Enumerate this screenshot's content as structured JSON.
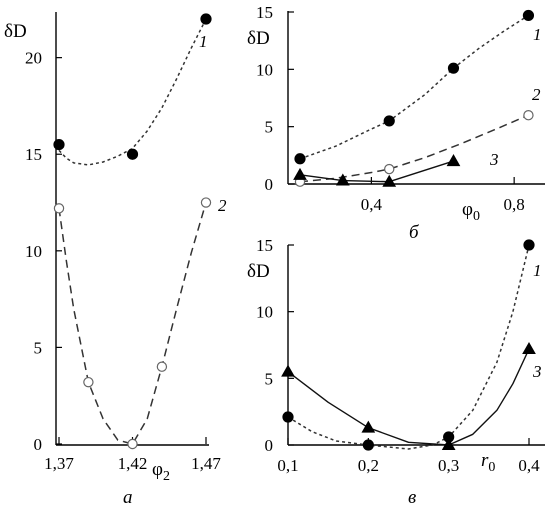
{
  "chart_data": [
    {
      "type": "line",
      "panel_label": "а",
      "ylabel": "δD",
      "xlabel": "φ",
      "xlabel_sub": "2",
      "xlim": [
        1.37,
        1.47
      ],
      "ylim": [
        0,
        22
      ],
      "x_ticks": [
        1.37,
        1.42,
        1.47
      ],
      "x_tick_labels": [
        "1,37",
        "1,42",
        "1,47"
      ],
      "y_ticks": [
        0,
        5,
        10,
        15,
        20
      ],
      "y_tick_labels": [
        "0",
        "5",
        "10",
        "15",
        "20"
      ],
      "series": [
        {
          "name": "1",
          "marker": "filled-circle",
          "line": "dotted",
          "points": [
            [
              1.37,
              15.5
            ],
            [
              1.42,
              15.0
            ],
            [
              1.47,
              22.0
            ]
          ],
          "curve": [
            [
              1.37,
              15.2
            ],
            [
              1.375,
              14.8
            ],
            [
              1.38,
              14.55
            ],
            [
              1.39,
              14.45
            ],
            [
              1.4,
              14.6
            ],
            [
              1.41,
              14.9
            ],
            [
              1.42,
              15.3
            ],
            [
              1.43,
              16.2
            ],
            [
              1.44,
              17.4
            ],
            [
              1.45,
              18.9
            ],
            [
              1.46,
              20.5
            ],
            [
              1.47,
              22.0
            ]
          ]
        },
        {
          "name": "2",
          "marker": "open-circle",
          "line": "dashed",
          "points": [
            [
              1.37,
              12.2
            ],
            [
              1.39,
              3.2
            ],
            [
              1.42,
              0.0
            ],
            [
              1.44,
              4.0
            ],
            [
              1.47,
              12.5
            ]
          ],
          "curve": [
            [
              1.37,
              12.2
            ],
            [
              1.375,
              9.5
            ],
            [
              1.38,
              7.0
            ],
            [
              1.39,
              3.2
            ],
            [
              1.4,
              1.3
            ],
            [
              1.41,
              0.2
            ],
            [
              1.42,
              0.0
            ],
            [
              1.43,
              1.3
            ],
            [
              1.44,
              4.0
            ],
            [
              1.45,
              7.0
            ],
            [
              1.46,
              9.9
            ],
            [
              1.47,
              12.5
            ]
          ]
        }
      ]
    },
    {
      "type": "line",
      "panel_label": "б",
      "ylabel": "δD",
      "xlabel": "φ",
      "xlabel_sub": "0",
      "xlim": [
        0.2,
        0.85
      ],
      "ylim": [
        0,
        15
      ],
      "x_ticks": [
        0.4,
        0.8
      ],
      "x_tick_labels": [
        "0,4",
        "0,8"
      ],
      "y_ticks": [
        0,
        5,
        10,
        15
      ],
      "y_tick_labels": [
        "0",
        "5",
        "10",
        "15"
      ],
      "series": [
        {
          "name": "1",
          "marker": "filled-circle",
          "line": "dotted",
          "points": [
            [
              0.2,
              2.2
            ],
            [
              0.45,
              5.5
            ],
            [
              0.63,
              10.1
            ],
            [
              0.84,
              14.7
            ]
          ],
          "curve": [
            [
              0.2,
              2.2
            ],
            [
              0.3,
              3.3
            ],
            [
              0.4,
              4.8
            ],
            [
              0.45,
              5.5
            ],
            [
              0.55,
              7.8
            ],
            [
              0.63,
              10.1
            ],
            [
              0.7,
              11.8
            ],
            [
              0.77,
              13.3
            ],
            [
              0.84,
              14.7
            ]
          ]
        },
        {
          "name": "2",
          "marker": "open-circle",
          "line": "dashed",
          "points": [
            [
              0.2,
              0.2
            ],
            [
              0.45,
              1.3
            ],
            [
              0.84,
              6.0
            ]
          ],
          "curve": [
            [
              0.2,
              0.2
            ],
            [
              0.3,
              0.5
            ],
            [
              0.4,
              1.0
            ],
            [
              0.45,
              1.3
            ],
            [
              0.55,
              2.3
            ],
            [
              0.65,
              3.5
            ],
            [
              0.75,
              4.8
            ],
            [
              0.84,
              6.0
            ]
          ]
        },
        {
          "name": "3",
          "marker": "filled-triangle",
          "line": "solid",
          "points": [
            [
              0.2,
              0.8
            ],
            [
              0.32,
              0.3
            ],
            [
              0.45,
              0.2
            ],
            [
              0.63,
              2.0
            ]
          ],
          "curve": [
            [
              0.2,
              0.8
            ],
            [
              0.32,
              0.3
            ],
            [
              0.45,
              0.2
            ],
            [
              0.63,
              2.0
            ]
          ]
        }
      ]
    },
    {
      "type": "line",
      "panel_label": "в",
      "ylabel": "δD",
      "xlabel": "r",
      "xlabel_sub": "0",
      "xlim": [
        0.1,
        0.4
      ],
      "ylim": [
        0,
        15
      ],
      "x_ticks": [
        0.1,
        0.2,
        0.3,
        0.4
      ],
      "x_tick_labels": [
        "0,1",
        "0,2",
        "0,3",
        "0,4"
      ],
      "y_ticks": [
        0,
        5,
        10,
        15
      ],
      "y_tick_labels": [
        "0",
        "5",
        "10",
        "15"
      ],
      "series": [
        {
          "name": "1",
          "marker": "filled-circle",
          "line": "dotted",
          "points": [
            [
              0.1,
              2.1
            ],
            [
              0.2,
              0.0
            ],
            [
              0.3,
              0.6
            ],
            [
              0.4,
              15.0
            ]
          ],
          "curve": [
            [
              0.1,
              2.1
            ],
            [
              0.13,
              1.0
            ],
            [
              0.16,
              0.3
            ],
            [
              0.2,
              0.0
            ],
            [
              0.25,
              -0.3
            ],
            [
              0.28,
              0.0
            ],
            [
              0.3,
              0.6
            ],
            [
              0.33,
              2.6
            ],
            [
              0.36,
              6.2
            ],
            [
              0.38,
              10.0
            ],
            [
              0.4,
              15.0
            ]
          ]
        },
        {
          "name": "3",
          "marker": "filled-triangle",
          "line": "solid",
          "points": [
            [
              0.1,
              5.5
            ],
            [
              0.2,
              1.3
            ],
            [
              0.3,
              0.0
            ],
            [
              0.4,
              7.2
            ]
          ],
          "curve": [
            [
              0.1,
              5.5
            ],
            [
              0.15,
              3.2
            ],
            [
              0.2,
              1.3
            ],
            [
              0.25,
              0.2
            ],
            [
              0.3,
              0.0
            ],
            [
              0.33,
              0.8
            ],
            [
              0.36,
              2.6
            ],
            [
              0.38,
              4.6
            ],
            [
              0.4,
              7.2
            ]
          ]
        }
      ]
    }
  ]
}
